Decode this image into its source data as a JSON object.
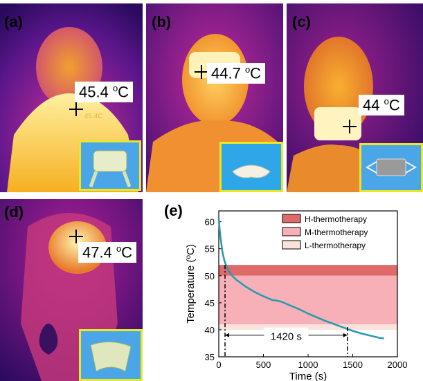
{
  "panels": {
    "a": {
      "letter": "(a)",
      "temp_value": "45.4 ",
      "temp_unit_sup": "o",
      "temp_unit": "C",
      "faint_reading": "45.4C"
    },
    "b": {
      "letter": "(b)",
      "temp_value": "44.7 ",
      "temp_unit_sup": "o",
      "temp_unit": "C"
    },
    "c": {
      "letter": "(c)",
      "temp_value": "44 ",
      "temp_unit_sup": "o",
      "temp_unit": "C"
    },
    "d": {
      "letter": "(d)",
      "temp_value": "47.4 ",
      "temp_unit_sup": "o",
      "temp_unit": "C"
    },
    "e": {
      "letter": "(e)"
    }
  },
  "colors": {
    "thermal_dark": "#2a0a5e",
    "thermal_mid": "#b0209a",
    "thermal_hot": "#f5a020",
    "thermal_white": "#fff6b0",
    "inset_border": "#e8e82a",
    "inset_bg": "#4aa6e6",
    "curve": "#2a9bb0",
    "h_band": "#e06a6a",
    "m_band": "#f7b0b8",
    "l_band": "#fbe3dc"
  },
  "chart_data": {
    "type": "line",
    "xlabel": "Time (s)",
    "ylabel": "Temperature (",
    "ylabel_sup": "o",
    "ylabel_tail": "C)",
    "xlim": [
      0,
      2000
    ],
    "ylim": [
      35,
      62
    ],
    "xticks": [
      0,
      500,
      1000,
      1500,
      2000
    ],
    "yticks": [
      35,
      40,
      45,
      50,
      55,
      60
    ],
    "bands": [
      {
        "name": "H-thermotherapy",
        "range": [
          50,
          52
        ],
        "color": "#e06a6a"
      },
      {
        "name": "M-thermotherapy",
        "range": [
          41,
          50
        ],
        "color": "#f7b0b8"
      },
      {
        "name": "L-thermotherapy",
        "range": [
          40,
          41
        ],
        "color": "#fbe3dc"
      }
    ],
    "series": [
      {
        "x": [
          0,
          10,
          20,
          30,
          40,
          60,
          80,
          100,
          150,
          200,
          250,
          300,
          400,
          500,
          600,
          650,
          700,
          800,
          900,
          1000,
          1100,
          1200,
          1300,
          1400,
          1500,
          1600,
          1700,
          1800,
          1850
        ],
        "y": [
          60.5,
          58.5,
          57.0,
          55.8,
          54.5,
          53.0,
          52.0,
          51.2,
          50.0,
          49.2,
          48.6,
          48.0,
          47.0,
          46.2,
          45.5,
          45.4,
          45.2,
          44.5,
          43.8,
          43.0,
          42.3,
          41.6,
          41.0,
          40.4,
          39.8,
          39.3,
          38.9,
          38.5,
          38.4
        ]
      }
    ],
    "annotation": {
      "text": "1420 s",
      "x_start": 70,
      "x_end": 1440,
      "y": 39
    }
  }
}
